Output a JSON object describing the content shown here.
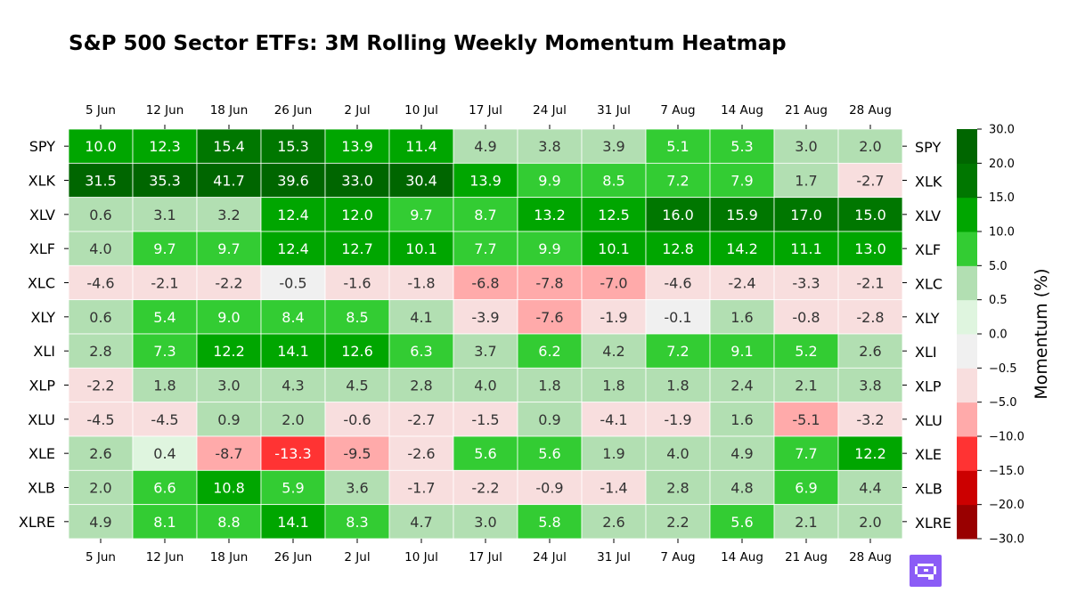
{
  "chart_data": {
    "type": "heatmap",
    "title": "S&P 500 Sector ETFs: 3M Rolling Weekly Momentum Heatmap",
    "colorbar_label": "Momentum (%)",
    "columns": [
      "5 Jun",
      "12 Jun",
      "18 Jun",
      "26 Jun",
      "2 Jul",
      "10 Jul",
      "17 Jul",
      "24 Jul",
      "31 Jul",
      "7 Aug",
      "14 Aug",
      "21 Aug",
      "28 Aug"
    ],
    "rows": [
      "SPY",
      "XLK",
      "XLV",
      "XLF",
      "XLC",
      "XLY",
      "XLI",
      "XLP",
      "XLU",
      "XLE",
      "XLB",
      "XLRE"
    ],
    "values": [
      [
        10.0,
        12.3,
        15.4,
        15.3,
        13.9,
        11.4,
        4.9,
        3.8,
        3.9,
        5.1,
        5.3,
        3.0,
        2.0
      ],
      [
        31.5,
        35.3,
        41.7,
        39.6,
        33.0,
        30.4,
        13.9,
        9.9,
        8.5,
        7.2,
        7.9,
        1.7,
        -2.7
      ],
      [
        0.6,
        3.1,
        3.2,
        12.4,
        12.0,
        9.7,
        8.7,
        13.2,
        12.5,
        16.0,
        15.9,
        17.0,
        15.0
      ],
      [
        4.0,
        9.7,
        9.7,
        12.4,
        12.7,
        10.1,
        7.7,
        9.9,
        10.1,
        12.8,
        14.2,
        11.1,
        13.0
      ],
      [
        -4.6,
        -2.1,
        -2.2,
        -0.5,
        -1.6,
        -1.8,
        -6.8,
        -7.8,
        -7.0,
        -4.6,
        -2.4,
        -3.3,
        -2.1
      ],
      [
        0.6,
        5.4,
        9.0,
        8.4,
        8.5,
        4.1,
        -3.9,
        -7.6,
        -1.9,
        -0.1,
        1.6,
        -0.8,
        -2.8
      ],
      [
        2.8,
        7.3,
        12.2,
        14.1,
        12.6,
        6.3,
        3.7,
        6.2,
        4.2,
        7.2,
        9.1,
        5.2,
        2.6
      ],
      [
        -2.2,
        1.8,
        3.0,
        4.3,
        4.5,
        2.8,
        4.0,
        1.8,
        1.8,
        1.8,
        2.4,
        2.1,
        3.8
      ],
      [
        -4.5,
        -4.5,
        0.9,
        2.0,
        -0.6,
        -2.7,
        -1.5,
        0.9,
        -4.1,
        -1.9,
        1.6,
        -5.1,
        -3.2
      ],
      [
        2.6,
        0.4,
        -8.7,
        -13.3,
        -9.5,
        -2.6,
        5.6,
        5.6,
        1.9,
        4.0,
        4.9,
        7.7,
        12.2
      ],
      [
        2.0,
        6.6,
        10.8,
        5.9,
        3.6,
        -1.7,
        -2.2,
        -0.9,
        -1.4,
        2.8,
        4.8,
        6.9,
        4.4
      ],
      [
        4.9,
        8.1,
        8.8,
        14.1,
        8.3,
        4.7,
        3.0,
        5.8,
        2.6,
        2.2,
        5.6,
        2.1,
        2.0
      ]
    ],
    "colorbar": {
      "bounds": [
        -30,
        -20,
        -15,
        -10,
        -5,
        -0.5,
        0,
        0.5,
        5,
        10,
        15,
        20,
        30
      ],
      "tick_labels": [
        "−30.0",
        "−20.0",
        "−15.0",
        "−10.0",
        "−5.0",
        "−0.5",
        "0.0",
        "0.5",
        "5.0",
        "10.0",
        "15.0",
        "20.0",
        "30.0"
      ],
      "colors": [
        "#990000",
        "#cc0000",
        "#ff3333",
        "#ffaaaa",
        "#f8dede",
        "#f0f0f0",
        "#dff5df",
        "#b2dfb2",
        "#33cc33",
        "#00a600",
        "#007700",
        "#006600"
      ]
    },
    "text_colors": {
      "dark": "#333333",
      "light": "#ffffff"
    },
    "grid_color": "#ffffff",
    "xticks_top_and_bottom": true,
    "yticks_left_and_right": true
  },
  "logo": {
    "name": "brand-logo-icon"
  }
}
